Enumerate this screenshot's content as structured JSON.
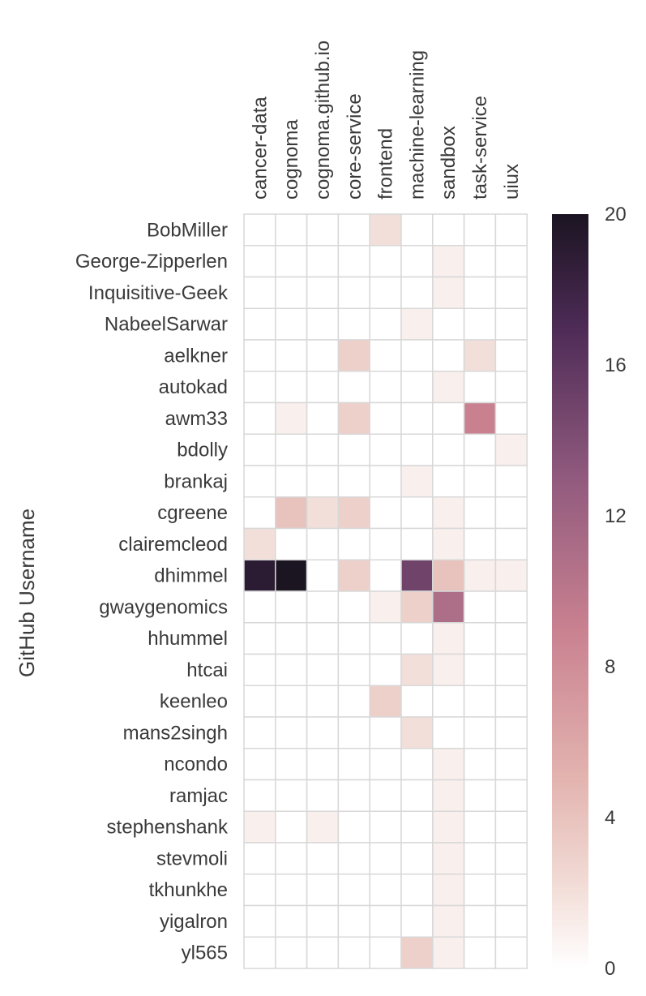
{
  "chart_data": {
    "type": "heatmap",
    "ylabel": "GitHub Username",
    "columns": [
      "cancer-data",
      "cognoma",
      "cognoma.github.io",
      "core-service",
      "frontend",
      "machine-learning",
      "sandbox",
      "task-service",
      "uiux"
    ],
    "rows": [
      "BobMiller",
      "George-Zipperlen",
      "Inquisitive-Geek",
      "NabeelSarwar",
      "aelkner",
      "autokad",
      "awm33",
      "bdolly",
      "brankaj",
      "cgreene",
      "clairemcleod",
      "dhimmel",
      "gwaygenomics",
      "hhummel",
      "htcai",
      "keenleo",
      "mans2singh",
      "ncondo",
      "ramjac",
      "stephenshank",
      "stevmoli",
      "tkhunkhe",
      "yigalron",
      "yl565"
    ],
    "values": [
      [
        0,
        0,
        0,
        0,
        2,
        0,
        0,
        0,
        0
      ],
      [
        0,
        0,
        0,
        0,
        0,
        0,
        1,
        0,
        0
      ],
      [
        0,
        0,
        0,
        0,
        0,
        0,
        1,
        0,
        0
      ],
      [
        0,
        0,
        0,
        0,
        0,
        1,
        0,
        0,
        0
      ],
      [
        0,
        0,
        0,
        3,
        0,
        0,
        0,
        2,
        0
      ],
      [
        0,
        0,
        0,
        0,
        0,
        0,
        1,
        0,
        0
      ],
      [
        0,
        1,
        0,
        3,
        0,
        0,
        0,
        9,
        0
      ],
      [
        0,
        0,
        0,
        0,
        0,
        0,
        0,
        0,
        1
      ],
      [
        0,
        0,
        0,
        0,
        0,
        1,
        0,
        0,
        0
      ],
      [
        0,
        4,
        2,
        3,
        0,
        0,
        1,
        0,
        0
      ],
      [
        2,
        0,
        0,
        0,
        0,
        0,
        1,
        0,
        0
      ],
      [
        19,
        20,
        0,
        3,
        0,
        15,
        4,
        1,
        1
      ],
      [
        0,
        0,
        0,
        0,
        1,
        3,
        11,
        0,
        0
      ],
      [
        0,
        0,
        0,
        0,
        0,
        0,
        1,
        0,
        0
      ],
      [
        0,
        0,
        0,
        0,
        0,
        2,
        1,
        0,
        0
      ],
      [
        0,
        0,
        0,
        0,
        3,
        0,
        0,
        0,
        0
      ],
      [
        0,
        0,
        0,
        0,
        0,
        2,
        0,
        0,
        0
      ],
      [
        0,
        0,
        0,
        0,
        0,
        0,
        1,
        0,
        0
      ],
      [
        0,
        0,
        0,
        0,
        0,
        0,
        1,
        0,
        0
      ],
      [
        1,
        0,
        1,
        0,
        0,
        0,
        1,
        0,
        0
      ],
      [
        0,
        0,
        0,
        0,
        0,
        0,
        1,
        0,
        0
      ],
      [
        0,
        0,
        0,
        0,
        0,
        0,
        1,
        0,
        0
      ],
      [
        0,
        0,
        0,
        0,
        0,
        0,
        1,
        0,
        0
      ],
      [
        0,
        0,
        0,
        0,
        0,
        3,
        1,
        0,
        0
      ]
    ],
    "colorbar": {
      "min": 0,
      "max": 20,
      "ticks": [
        0,
        4,
        8,
        12,
        16,
        20
      ]
    },
    "colors": {
      "low": "#ffffff",
      "c1": "#f1d9d3",
      "c2": "#e3b4b0",
      "c3": "#c98190",
      "c4": "#915a7e",
      "c5": "#4d2b56",
      "high": "#1b1421",
      "grid": "#d8d8d8"
    }
  }
}
